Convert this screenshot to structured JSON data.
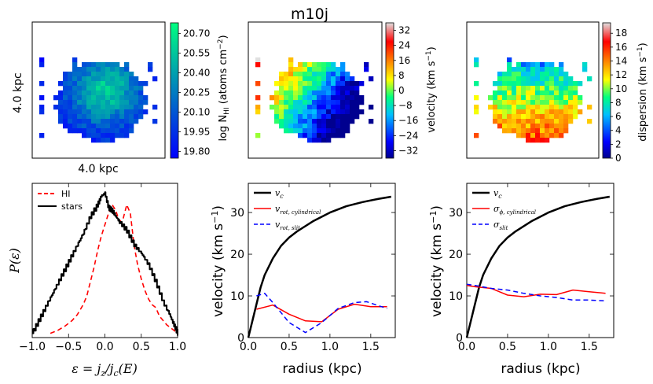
{
  "title": "m10j",
  "maps": [
    {
      "name": "hi-column-density-map",
      "xlabel": "4.0 kpc",
      "ylabel": "4.0 kpc",
      "colorbar": {
        "label_prefix": "log N",
        "label_sub": "HI",
        "label_suffix": " (atoms cm",
        "label_sup": "−2",
        "label_close": ")",
        "ticks": [
          "20.70",
          "20.55",
          "20.40",
          "20.25",
          "20.10",
          "19.95",
          "19.80"
        ],
        "range": [
          19.75,
          20.78
        ],
        "colormap": "winter",
        "stops": [
          "#0000ff",
          "#00ff80"
        ]
      }
    },
    {
      "name": "velocity-map",
      "colorbar": {
        "label": "velocity (km s",
        "label_sup": "−1",
        "label_close": ")",
        "ticks": [
          "32",
          "24",
          "16",
          "8",
          "0",
          "−8",
          "−16",
          "−24",
          "−32"
        ],
        "range": [
          -36,
          36
        ],
        "colormap": "jet-like",
        "stops": [
          "#00008f",
          "#0000ff",
          "#00bfff",
          "#00ff80",
          "#ffff00",
          "#ff8000",
          "#ff0000",
          "#e0e0e0"
        ]
      }
    },
    {
      "name": "dispersion-map",
      "colorbar": {
        "label": "dispersion (km s",
        "label_sup": "−1",
        "label_close": ")",
        "ticks": [
          "18",
          "16",
          "14",
          "12",
          "10",
          "8",
          "6",
          "4",
          "2",
          "0"
        ],
        "range": [
          0,
          19.5
        ],
        "colormap": "jet-like",
        "stops": [
          "#00008f",
          "#0000ff",
          "#00bfff",
          "#00ff80",
          "#ffff00",
          "#ff8000",
          "#ff0000",
          "#e0e0e0"
        ]
      }
    }
  ],
  "chart_data": [
    {
      "type": "line",
      "name": "circularity-distribution",
      "xlabel": "ε = j_z/j_c(E)",
      "ylabel": "P(ε)",
      "xlim": [
        -1.0,
        1.0
      ],
      "xticks": [
        "−1.0",
        "−0.5",
        "0.0",
        "0.5",
        "1.0"
      ],
      "legend": "top-left",
      "series": [
        {
          "name": "HI",
          "color": "#ff0000",
          "style": "dashed",
          "x": [
            -0.75,
            -0.65,
            -0.55,
            -0.45,
            -0.38,
            -0.3,
            -0.25,
            -0.2,
            -0.15,
            -0.1,
            -0.05,
            0.0,
            0.05,
            0.1,
            0.15,
            0.2,
            0.25,
            0.3,
            0.35,
            0.4,
            0.45,
            0.5,
            0.55,
            0.6,
            0.65,
            0.7,
            0.75,
            0.8,
            0.85,
            0.9,
            0.95,
            1.0
          ],
          "y": [
            0.0,
            0.02,
            0.05,
            0.09,
            0.13,
            0.2,
            0.26,
            0.36,
            0.46,
            0.58,
            0.68,
            0.76,
            0.84,
            0.9,
            0.86,
            0.78,
            0.8,
            0.9,
            0.84,
            0.62,
            0.48,
            0.38,
            0.3,
            0.24,
            0.2,
            0.18,
            0.12,
            0.09,
            0.06,
            0.04,
            0.02,
            0.0
          ]
        },
        {
          "name": "stars",
          "color": "#000000",
          "style": "solid",
          "x": [
            -1.0,
            -0.9,
            -0.8,
            -0.7,
            -0.6,
            -0.5,
            -0.4,
            -0.3,
            -0.2,
            -0.1,
            -0.05,
            0.0,
            0.05,
            0.1,
            0.15,
            0.2,
            0.3,
            0.4,
            0.5,
            0.6,
            0.7,
            0.8,
            0.9,
            0.95,
            1.0
          ],
          "y": [
            0.0,
            0.1,
            0.2,
            0.3,
            0.4,
            0.5,
            0.6,
            0.7,
            0.82,
            0.9,
            0.96,
            0.98,
            0.88,
            0.86,
            0.82,
            0.78,
            0.72,
            0.62,
            0.56,
            0.48,
            0.36,
            0.22,
            0.12,
            0.06,
            0.0
          ]
        }
      ]
    },
    {
      "type": "line",
      "name": "rotation-curve",
      "xlabel": "radius (kpc)",
      "ylabel": "velocity (km s−1)",
      "xlim": [
        0.0,
        1.8
      ],
      "ylim": [
        0,
        37
      ],
      "xticks": [
        "0.0",
        "0.5",
        "1.0",
        "1.5"
      ],
      "yticks": [
        "0",
        "10",
        "20",
        "30"
      ],
      "legend": "top-left",
      "series": [
        {
          "name": "v_c",
          "color": "#000000",
          "style": "solid",
          "x": [
            0.0,
            0.05,
            0.1,
            0.15,
            0.2,
            0.3,
            0.4,
            0.5,
            0.6,
            0.8,
            1.0,
            1.2,
            1.4,
            1.6,
            1.75
          ],
          "y": [
            0.0,
            4.0,
            8.0,
            12.0,
            15.0,
            19.0,
            22.0,
            24.0,
            25.5,
            28.0,
            30.0,
            31.5,
            32.5,
            33.3,
            33.8
          ]
        },
        {
          "name": "v_rot, cylindrical",
          "color": "#ff0000",
          "style": "solid",
          "x": [
            0.1,
            0.3,
            0.5,
            0.7,
            0.9,
            1.1,
            1.3,
            1.5,
            1.7
          ],
          "y": [
            6.8,
            7.8,
            5.6,
            4.0,
            3.8,
            6.8,
            8.0,
            7.4,
            7.4
          ]
        },
        {
          "name": "v_rot, slit",
          "color": "#0000ff",
          "style": "dashed",
          "x": [
            0.1,
            0.2,
            0.3,
            0.5,
            0.7,
            0.9,
            1.1,
            1.3,
            1.45,
            1.6,
            1.7
          ],
          "y": [
            10.0,
            10.6,
            8.4,
            3.6,
            1.2,
            3.6,
            7.0,
            8.4,
            8.6,
            7.6,
            7.0
          ]
        }
      ]
    },
    {
      "type": "line",
      "name": "dispersion-profile",
      "xlabel": "radius (kpc)",
      "ylabel": "velocity (km s−1)",
      "xlim": [
        0.0,
        1.8
      ],
      "ylim": [
        0,
        37
      ],
      "xticks": [
        "0.0",
        "0.5",
        "1.0",
        "1.5"
      ],
      "yticks": [
        "0",
        "10",
        "20",
        "30"
      ],
      "legend": "top-left",
      "series": [
        {
          "name": "v_c",
          "color": "#000000",
          "style": "solid",
          "x": [
            0.0,
            0.05,
            0.1,
            0.15,
            0.2,
            0.3,
            0.4,
            0.5,
            0.6,
            0.8,
            1.0,
            1.2,
            1.4,
            1.6,
            1.75
          ],
          "y": [
            0.0,
            4.0,
            8.0,
            12.0,
            15.0,
            19.0,
            22.0,
            24.0,
            25.5,
            28.0,
            30.0,
            31.5,
            32.5,
            33.3,
            33.8
          ]
        },
        {
          "name": "σ_φ, cylindrical",
          "color": "#ff0000",
          "style": "solid",
          "x": [
            0.0,
            0.1,
            0.3,
            0.5,
            0.7,
            0.9,
            1.1,
            1.3,
            1.5,
            1.7
          ],
          "y": [
            12.5,
            12.2,
            11.8,
            10.2,
            9.8,
            10.4,
            10.3,
            11.4,
            11.0,
            10.6
          ]
        },
        {
          "name": "σ_slit",
          "color": "#0000ff",
          "style": "dashed",
          "x": [
            0.0,
            0.1,
            0.3,
            0.5,
            0.7,
            0.9,
            1.1,
            1.3,
            1.5,
            1.7
          ],
          "y": [
            12.8,
            12.5,
            11.8,
            11.4,
            10.6,
            10.0,
            9.6,
            9.0,
            9.0,
            8.8
          ]
        }
      ]
    }
  ]
}
